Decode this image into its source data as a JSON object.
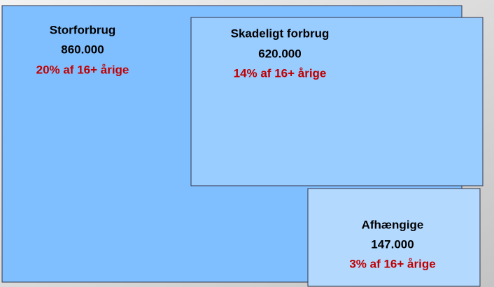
{
  "nodes": [
    {
      "label": "Storforbrug",
      "value": "860.000",
      "share": "20% af 16+ årige"
    },
    {
      "label": "Skadeligt forbrug",
      "value": "620.000",
      "share": "14% af 16+ årige"
    },
    {
      "label": "Afhængige",
      "value": "147.000",
      "share": "3% af 16+ årige"
    }
  ]
}
